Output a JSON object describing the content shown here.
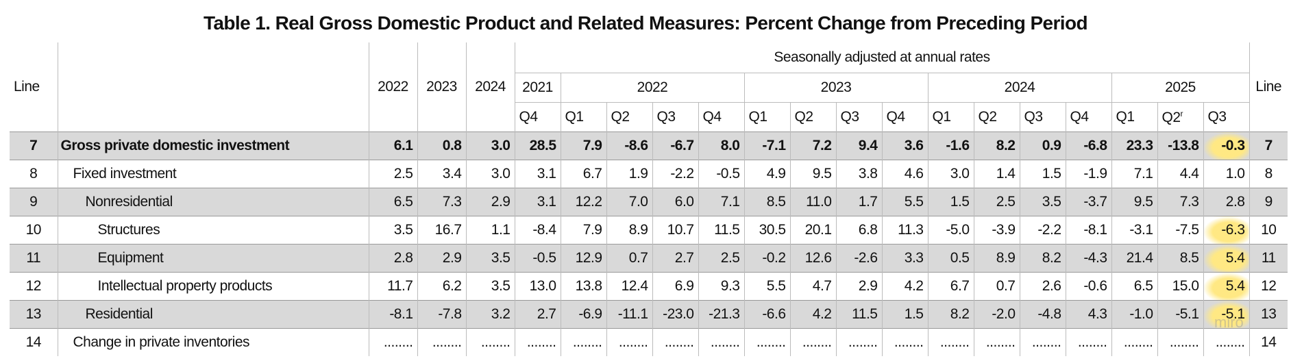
{
  "title": "Table 1. Real Gross Domestic Product and Related Measures: Percent Change from Preceding Period",
  "header": {
    "line": "Line",
    "annual": [
      "2022",
      "2023",
      "2024"
    ],
    "seasonal": "Seasonally adjusted at annual rates",
    "years": [
      "2021",
      "2022",
      "2023",
      "2024",
      "2025"
    ],
    "quarters": [
      "Q4",
      "Q1",
      "Q2",
      "Q3",
      "Q4",
      "Q1",
      "Q2",
      "Q3",
      "Q4",
      "Q1",
      "Q2",
      "Q3",
      "Q4",
      "Q1",
      "Q2",
      "Q3"
    ],
    "revised_marker": "r",
    "line_right": "Line"
  },
  "rows": [
    {
      "line": "7",
      "label": "Gross private domestic investment",
      "values": [
        "6.1",
        "0.8",
        "3.0",
        "28.5",
        "7.9",
        "-8.6",
        "-6.7",
        "8.0",
        "-7.1",
        "7.2",
        "9.4",
        "3.6",
        "-1.6",
        "8.2",
        "0.9",
        "-6.8",
        "23.3",
        "-13.8",
        "-0.3"
      ],
      "line_right": "7"
    },
    {
      "line": "8",
      "label": "Fixed investment",
      "values": [
        "2.5",
        "3.4",
        "3.0",
        "3.1",
        "6.7",
        "1.9",
        "-2.2",
        "-0.5",
        "4.9",
        "9.5",
        "3.8",
        "4.6",
        "3.0",
        "1.4",
        "1.5",
        "-1.9",
        "7.1",
        "4.4",
        "1.0"
      ],
      "line_right": "8"
    },
    {
      "line": "9",
      "label": "Nonresidential",
      "values": [
        "6.5",
        "7.3",
        "2.9",
        "3.1",
        "12.2",
        "7.0",
        "6.0",
        "7.1",
        "8.5",
        "11.0",
        "1.7",
        "5.5",
        "1.5",
        "2.5",
        "3.5",
        "-3.7",
        "9.5",
        "7.3",
        "2.8"
      ],
      "line_right": "9"
    },
    {
      "line": "10",
      "label": "Structures",
      "values": [
        "3.5",
        "16.7",
        "1.1",
        "-8.4",
        "7.9",
        "8.9",
        "10.7",
        "11.5",
        "30.5",
        "20.1",
        "6.8",
        "11.3",
        "-5.0",
        "-3.9",
        "-2.2",
        "-8.1",
        "-3.1",
        "-7.5",
        "-6.3"
      ],
      "line_right": "10"
    },
    {
      "line": "11",
      "label": "Equipment",
      "values": [
        "2.8",
        "2.9",
        "3.5",
        "-0.5",
        "12.9",
        "0.7",
        "2.7",
        "2.5",
        "-0.2",
        "12.6",
        "-2.6",
        "3.3",
        "0.5",
        "8.9",
        "8.2",
        "-4.3",
        "21.4",
        "8.5",
        "5.4"
      ],
      "line_right": "11"
    },
    {
      "line": "12",
      "label": "Intellectual property products",
      "values": [
        "11.7",
        "6.2",
        "3.5",
        "13.0",
        "13.8",
        "12.4",
        "6.9",
        "9.3",
        "5.5",
        "4.7",
        "2.9",
        "4.2",
        "6.7",
        "0.7",
        "2.6",
        "-0.6",
        "6.5",
        "15.0",
        "5.4"
      ],
      "line_right": "12"
    },
    {
      "line": "13",
      "label": "Residential",
      "values": [
        "-8.1",
        "-7.8",
        "3.2",
        "2.7",
        "-6.9",
        "-11.1",
        "-23.0",
        "-21.3",
        "-6.6",
        "4.2",
        "11.5",
        "1.5",
        "8.2",
        "-2.0",
        "-4.8",
        "4.3",
        "-1.0",
        "-5.1",
        "-5.1"
      ],
      "line_right": "13"
    },
    {
      "line": "14",
      "label": "Change in private inventories",
      "values": [
        "........",
        "........",
        "........",
        "........",
        "........",
        "........",
        "........",
        "........",
        "........",
        "........",
        "........",
        "........",
        "........",
        "........",
        "........",
        "........",
        "........",
        "........",
        "........"
      ],
      "line_right": "14"
    }
  ],
  "watermark": "miro"
}
